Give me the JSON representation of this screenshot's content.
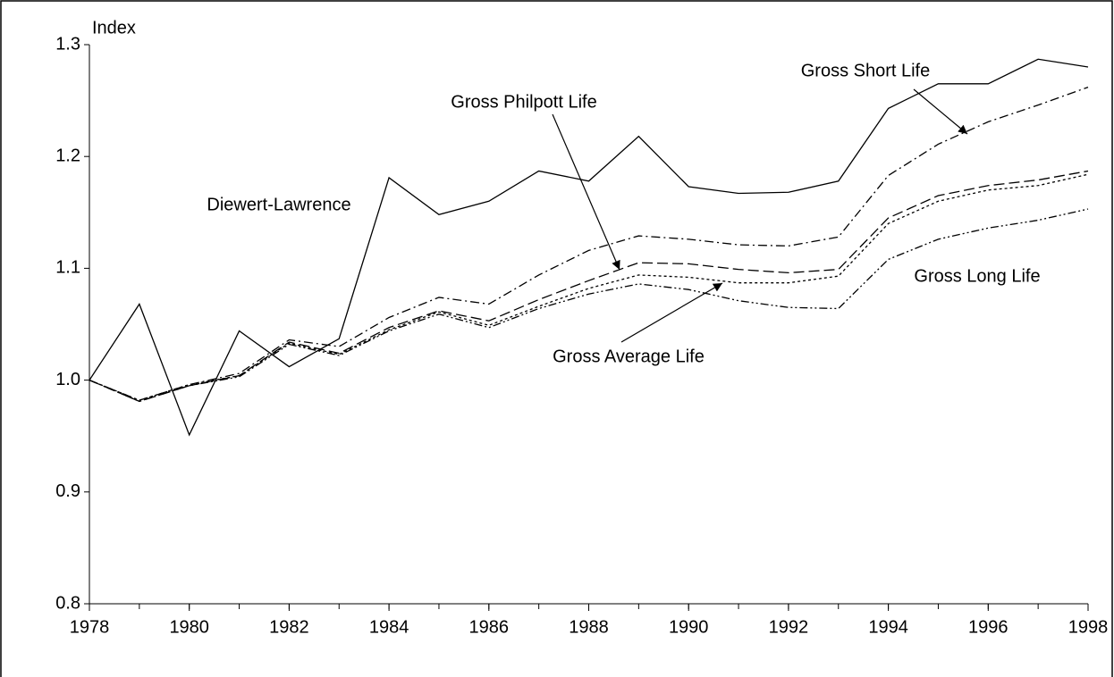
{
  "chart_data": {
    "type": "line",
    "y_label": "Index",
    "x": [
      1978,
      1979,
      1980,
      1981,
      1982,
      1983,
      1984,
      1985,
      1986,
      1987,
      1988,
      1989,
      1990,
      1991,
      1992,
      1993,
      1994,
      1995,
      1996,
      1997,
      1998
    ],
    "xlim": [
      1978,
      1998
    ],
    "xticks": [
      1978,
      1980,
      1982,
      1984,
      1986,
      1988,
      1990,
      1992,
      1994,
      1996,
      1998
    ],
    "ylim": [
      0.8,
      1.3
    ],
    "yticks": [
      0.8,
      0.9,
      {
        "value": 1,
        "label": "1.0"
      },
      1.1,
      1.2,
      1.3
    ],
    "series": [
      {
        "name": "Diewert-Lawrence",
        "color": "#000000",
        "values": [
          1.0,
          1.068,
          0.951,
          1.044,
          1.012,
          1.037,
          1.181,
          1.148,
          1.16,
          1.187,
          1.178,
          1.218,
          1.173,
          1.167,
          1.168,
          1.178,
          1.243,
          1.265,
          1.265,
          1.287,
          1.28
        ]
      },
      {
        "name": "Gross Short Life",
        "color": "#000000",
        "values": [
          1.0,
          0.982,
          0.996,
          1.006,
          1.036,
          1.03,
          1.056,
          1.074,
          1.068,
          1.094,
          1.116,
          1.129,
          1.126,
          1.121,
          1.12,
          1.128,
          1.183,
          1.211,
          1.231,
          1.246,
          1.262
        ]
      },
      {
        "name": "Gross Philpott Life",
        "color": "#000000",
        "values": [
          1.0,
          0.981,
          0.995,
          1.004,
          1.034,
          1.024,
          1.047,
          1.062,
          1.053,
          1.072,
          1.089,
          1.105,
          1.104,
          1.099,
          1.096,
          1.099,
          1.145,
          1.165,
          1.174,
          1.179,
          1.187
        ]
      },
      {
        "name": "Gross Average Life",
        "color": "#000000",
        "values": [
          1.0,
          0.982,
          0.996,
          1.004,
          1.033,
          1.023,
          1.045,
          1.061,
          1.049,
          1.066,
          1.082,
          1.094,
          1.092,
          1.087,
          1.087,
          1.093,
          1.14,
          1.16,
          1.17,
          1.174,
          1.184
        ]
      },
      {
        "name": "Gross Long Life",
        "color": "#000000",
        "values": [
          1.0,
          0.981,
          0.995,
          1.003,
          1.032,
          1.022,
          1.044,
          1.059,
          1.047,
          1.064,
          1.077,
          1.086,
          1.081,
          1.071,
          1.065,
          1.064,
          1.108,
          1.126,
          1.136,
          1.143,
          1.153
        ]
      }
    ]
  }
}
